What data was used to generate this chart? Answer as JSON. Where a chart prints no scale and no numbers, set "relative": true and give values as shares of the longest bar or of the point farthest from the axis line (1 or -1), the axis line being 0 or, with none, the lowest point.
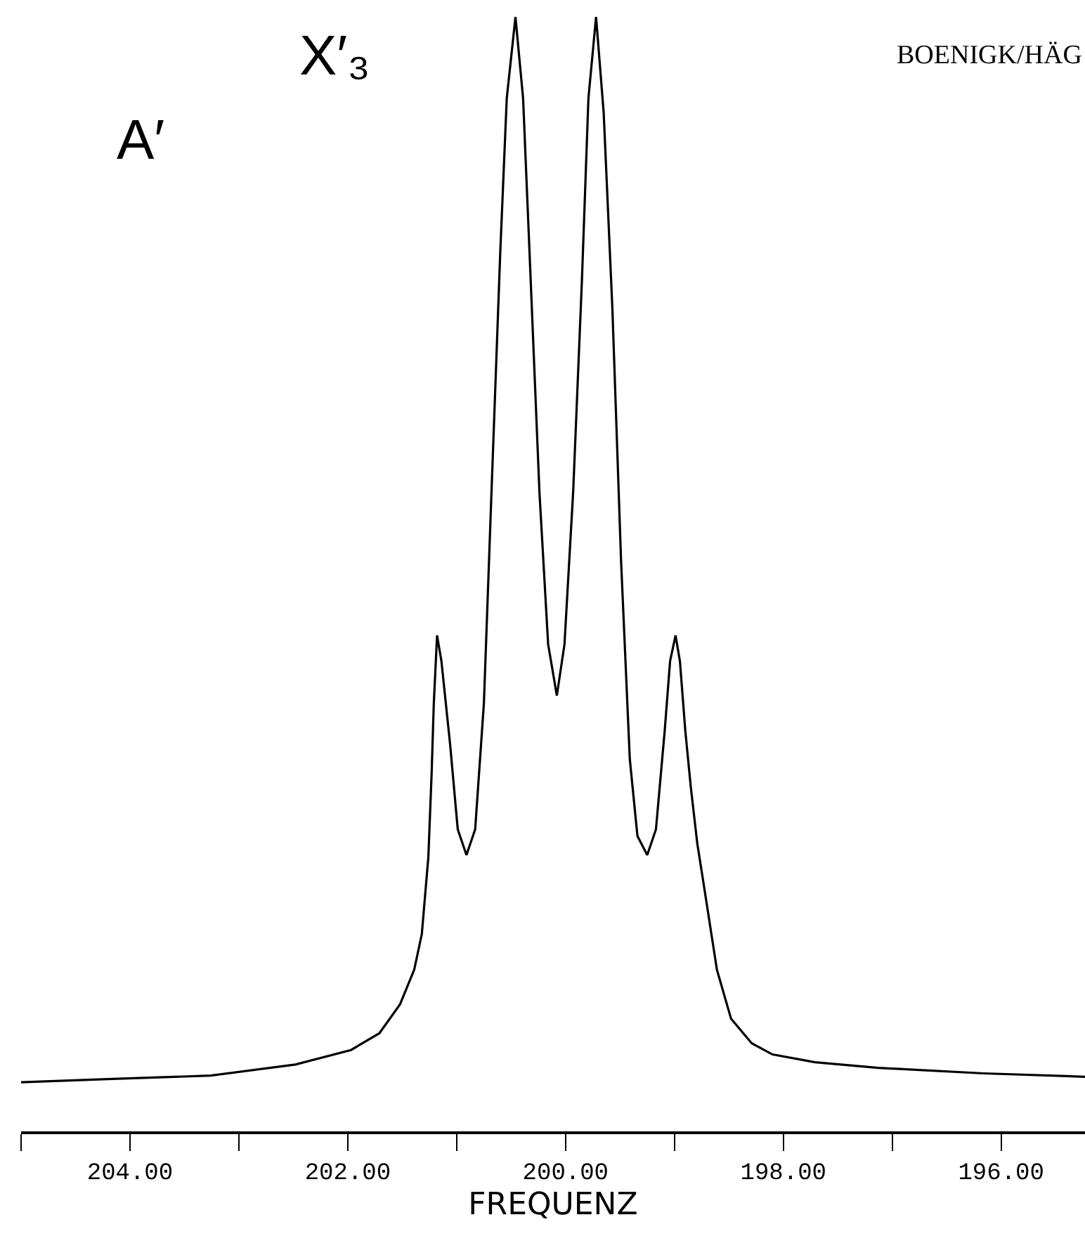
{
  "chart_data": {
    "type": "line",
    "xlabel": "FREQUENZ",
    "relative": true,
    "marker": "none",
    "line_style": "solid",
    "annotations": [
      "A′",
      "X′₃",
      "BOENIGK/HÄG"
    ],
    "xlim": [
      205.0,
      195.23
    ],
    "xticks": [
      {
        "value": 205,
        "label": null
      },
      {
        "value": 204,
        "label": "204.00"
      },
      {
        "value": 203,
        "label": null
      },
      {
        "value": 202,
        "label": "202.00"
      },
      {
        "value": 201,
        "label": null
      },
      {
        "value": 200,
        "label": "200.00"
      },
      {
        "value": 199,
        "label": null
      },
      {
        "value": 198,
        "label": "198.00"
      },
      {
        "value": 197,
        "label": null
      },
      {
        "value": 196,
        "label": "196.00"
      }
    ],
    "x": [
      205.0,
      204.16,
      203.26,
      202.48,
      201.97,
      201.71,
      201.52,
      201.39,
      201.32,
      201.26,
      201.23,
      201.21,
      201.18,
      201.14,
      201.06,
      200.99,
      200.91,
      200.83,
      200.75,
      200.68,
      200.6,
      200.54,
      200.46,
      200.39,
      200.32,
      200.24,
      200.16,
      200.08,
      200.01,
      199.93,
      199.85,
      199.79,
      199.72,
      199.65,
      199.57,
      199.49,
      199.41,
      199.34,
      199.25,
      199.17,
      199.09,
      199.04,
      198.99,
      198.95,
      198.9,
      198.85,
      198.79,
      198.74,
      198.61,
      198.48,
      198.29,
      198.1,
      197.71,
      197.13,
      196.16,
      195.23
    ],
    "series": [
      {
        "color": "#000000",
        "values": [
          0.044,
          0.047,
          0.05,
          0.06,
          0.073,
          0.088,
          0.114,
          0.145,
          0.177,
          0.246,
          0.321,
          0.384,
          0.445,
          0.422,
          0.347,
          0.271,
          0.248,
          0.271,
          0.384,
          0.574,
          0.788,
          0.927,
          1,
          0.927,
          0.763,
          0.574,
          0.437,
          0.391,
          0.437,
          0.574,
          0.763,
          0.927,
          1,
          0.914,
          0.738,
          0.511,
          0.334,
          0.265,
          0.248,
          0.271,
          0.359,
          0.422,
          0.445,
          0.422,
          0.359,
          0.309,
          0.258,
          0.227,
          0.145,
          0.101,
          0.079,
          0.069,
          0.062,
          0.057,
          0.052,
          0.049
        ]
      }
    ]
  }
}
